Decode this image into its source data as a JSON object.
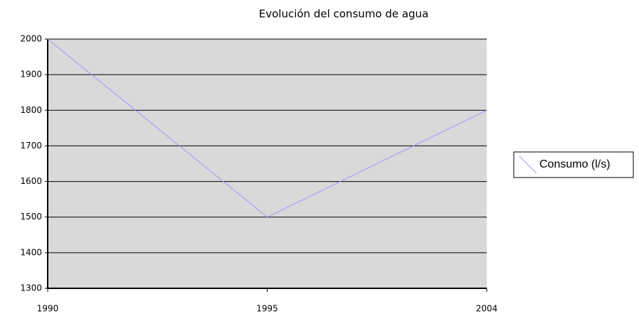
{
  "chart_data": {
    "type": "line",
    "title": "Evolución del consumo de agua",
    "categories": [
      "1990",
      "1995",
      "2004"
    ],
    "series": [
      {
        "name": "Consumo (l/s)",
        "color": "#9999ff",
        "values": [
          2000,
          1500,
          1800
        ]
      }
    ],
    "ylim": [
      1300,
      2000
    ],
    "yticks": [
      1300,
      1400,
      1500,
      1600,
      1700,
      1800,
      1900,
      2000
    ],
    "grid": true,
    "legend": "right"
  }
}
